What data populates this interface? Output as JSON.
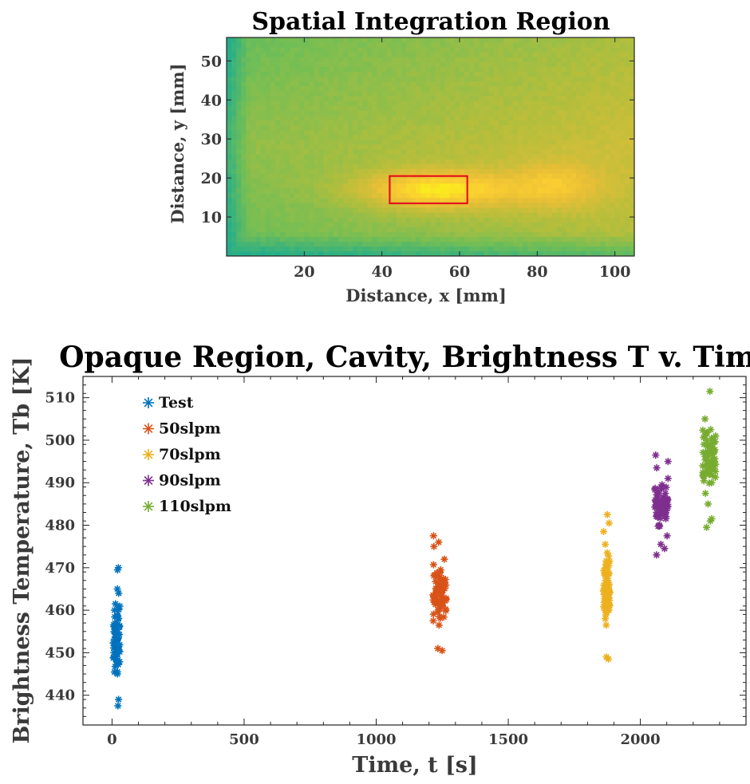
{
  "chart_data": [
    {
      "type": "heatmap",
      "title": "Spatial Integration Region",
      "xlabel": "Distance, x [mm]",
      "ylabel": "Distance, y [mm]",
      "xlim": [
        0,
        105
      ],
      "ylim": [
        0,
        56
      ],
      "xticks": [
        20,
        40,
        60,
        80,
        100
      ],
      "yticks": [
        10,
        20,
        30,
        40,
        50
      ],
      "colormap": "parula",
      "color_range": [
        440,
        512
      ],
      "integration_region": {
        "x": [
          42,
          62
        ],
        "y": [
          13.5,
          20.5
        ],
        "color": "#e3121b"
      },
      "hot_spot_center": [
        54,
        17
      ]
    },
    {
      "type": "scatter",
      "title": "Opaque Region, Cavity, Brightness T v. Time",
      "xlabel": "Time, t [s]",
      "ylabel": "Brightness Temperature, Tb [K]",
      "xlim": [
        -110,
        2400
      ],
      "ylim": [
        433,
        515
      ],
      "xticks": [
        0,
        500,
        1000,
        1500,
        2000
      ],
      "yticks": [
        440,
        450,
        460,
        470,
        480,
        490,
        500,
        510
      ],
      "marker": "asterisk",
      "legend": "top-left",
      "series": [
        {
          "name": "Test",
          "color": "#0072bd",
          "x_range": [
            5,
            30
          ],
          "y_extra": [
            437.5,
            439,
            445,
            445.5,
            448,
            450,
            453,
            454,
            456.5,
            458,
            461.5,
            464,
            465,
            469.5,
            470
          ]
        },
        {
          "name": "50slpm",
          "color": "#d95319",
          "x_range": [
            1215,
            1265
          ],
          "y_extra": [
            450.5,
            451,
            456.5,
            457.5,
            458.5,
            461,
            464.5,
            466.5,
            469.5,
            472,
            475,
            476,
            477.5
          ]
        },
        {
          "name": "70slpm",
          "color": "#edb120",
          "x_range": [
            1860,
            1885
          ],
          "y_extra": [
            448.5,
            449,
            456.5,
            458,
            460,
            463,
            465,
            467,
            471.5,
            473.5,
            475.5,
            478.5,
            480.5,
            482.5
          ]
        },
        {
          "name": "90slpm",
          "color": "#7e2f8e",
          "x_range": [
            2055,
            2105
          ],
          "y_extra": [
            473,
            474.5,
            475.5,
            477.5,
            480,
            483,
            485,
            487.5,
            489.5,
            491,
            493.5,
            495,
            496.5
          ]
        },
        {
          "name": "110slpm",
          "color": "#77ac30",
          "x_range": [
            2235,
            2285
          ],
          "y_extra": [
            479.5,
            481,
            481.5,
            485,
            487.5,
            490,
            493,
            495,
            497,
            499,
            501,
            502.5,
            505,
            511.5
          ]
        }
      ]
    }
  ]
}
